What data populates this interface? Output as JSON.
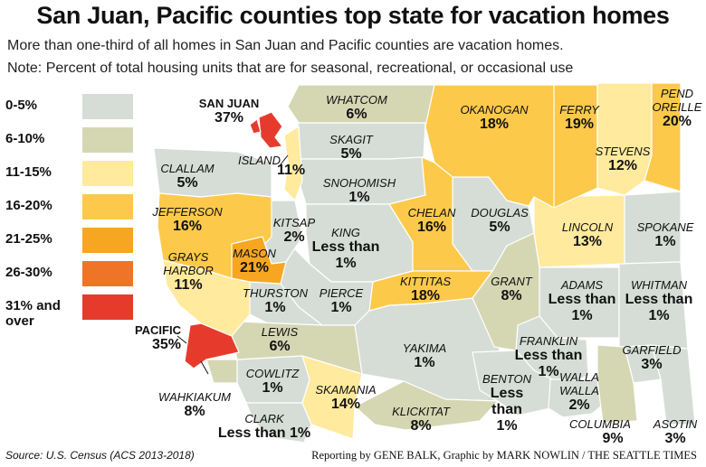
{
  "title": "San Juan, Pacific counties top state for vacation homes",
  "subtitle": "More than one-third of all homes in San Juan and Pacific counties are vacation homes.",
  "note": "Note: Percent of total housing units that are for seasonal, recreational, or occasional use",
  "legend": [
    {
      "label": "0-5%",
      "color": "#d5ddd6"
    },
    {
      "label": "6-10%",
      "color": "#d5d7b3"
    },
    {
      "label": "11-15%",
      "color": "#ffea9d"
    },
    {
      "label": "16-20%",
      "color": "#fcc94a"
    },
    {
      "label": "21-25%",
      "color": "#f6a620"
    },
    {
      "label": "26-30%",
      "color": "#ee7527"
    },
    {
      "label": "31% and over",
      "color": "#e63b2c"
    }
  ],
  "counties": {
    "san_juan": {
      "name": "SAN JUAN",
      "value": "37%"
    },
    "whatcom": {
      "name": "WHATCOM",
      "value": "6%"
    },
    "okanogan": {
      "name": "OKANOGAN",
      "value": "18%"
    },
    "ferry": {
      "name": "FERRY",
      "value": "19%"
    },
    "pend_oreille": {
      "name_1": "PEND",
      "name_2": "OREILLE",
      "value": "20%"
    },
    "skagit": {
      "name": "SKAGIT",
      "value": "5%"
    },
    "stevens": {
      "name": "STEVENS",
      "value": "12%"
    },
    "island": {
      "name": "ISLAND",
      "value": "11%"
    },
    "clallam": {
      "name": "CLALLAM",
      "value": "5%"
    },
    "snohomish": {
      "name": "SNOHOMISH",
      "value": "1%"
    },
    "jefferson": {
      "name": "JEFFERSON",
      "value": "16%"
    },
    "chelan": {
      "name": "CHELAN",
      "value": "16%"
    },
    "douglas": {
      "name": "DOUGLAS",
      "value": "5%"
    },
    "kitsap": {
      "name": "KITSAP",
      "value": "2%"
    },
    "king": {
      "name": "KING",
      "value_1": "Less than",
      "value_2": "1%"
    },
    "lincoln": {
      "name": "LINCOLN",
      "value": "13%"
    },
    "spokane": {
      "name": "SPOKANE",
      "value": "1%"
    },
    "grays_harbor": {
      "name_1": "GRAYS",
      "name_2": "HARBOR",
      "value": "11%"
    },
    "mason": {
      "name": "MASON",
      "value": "21%"
    },
    "kittitas": {
      "name": "KITTITAS",
      "value": "18%"
    },
    "grant": {
      "name": "GRANT",
      "value": "8%"
    },
    "adams": {
      "name": "ADAMS",
      "value_1": "Less than",
      "value_2": "1%"
    },
    "whitman": {
      "name": "WHITMAN",
      "value_1": "Less than",
      "value_2": "1%"
    },
    "thurston": {
      "name": "THURSTON",
      "value": "1%"
    },
    "pierce": {
      "name": "PIERCE",
      "value": "1%"
    },
    "pacific": {
      "name": "PACIFIC",
      "value": "35%"
    },
    "lewis": {
      "name": "LEWIS",
      "value": "6%"
    },
    "yakima": {
      "name": "YAKIMA",
      "value": "1%"
    },
    "franklin": {
      "name": "FRANKLIN",
      "value_1": "Less than",
      "value_2": "1%"
    },
    "garfield": {
      "name": "GARFIELD",
      "value": "3%"
    },
    "cowlitz": {
      "name": "COWLITZ",
      "value": "1%"
    },
    "benton": {
      "name": "BENTON",
      "value_1": "Less",
      "value_2": "than",
      "value_3": "1%"
    },
    "walla_walla": {
      "name_1": "WALLA",
      "name_2": "WALLA",
      "value": "2%"
    },
    "wahkiakum": {
      "name": "WAHKIAKUM",
      "value": "8%"
    },
    "skamania": {
      "name": "SKAMANIA",
      "value": "14%"
    },
    "klickitat": {
      "name": "KLICKITAT",
      "value": "8%"
    },
    "clark": {
      "name": "CLARK",
      "value": "Less than 1%"
    },
    "columbia": {
      "name": "COLUMBIA",
      "value": "9%"
    },
    "asotin": {
      "name": "ASOTIN",
      "value": "3%"
    }
  },
  "source": "Source: U.S. Census (ACS 2013-2018)",
  "credit": "Reporting by GENE BALK,  Graphic by MARK NOWLIN / THE SEATTLE TIMES"
}
